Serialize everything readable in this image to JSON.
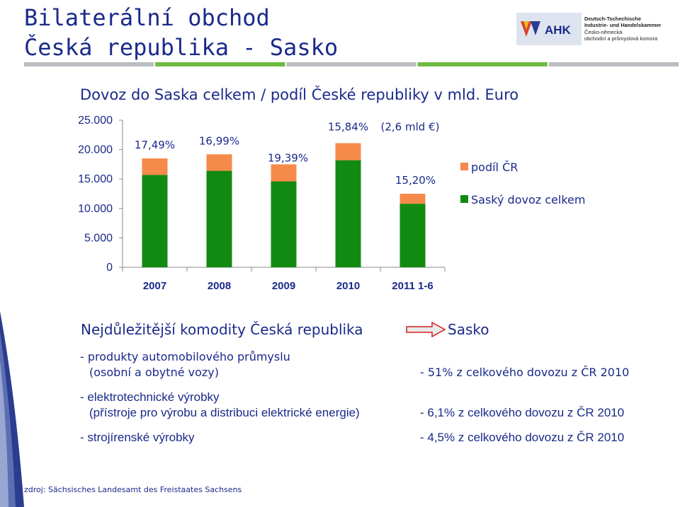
{
  "header": {
    "title_line1": "Bilaterální obchod",
    "title_line2": "Česká republika - Sasko"
  },
  "logo": {
    "abbr": "AHK",
    "line1": "Deutsch-Tschechische",
    "line2": "Industrie- und Handelskammer",
    "line3": "Česko-německá",
    "line4": "obchodní a průmyslová komora"
  },
  "divider_colors": [
    "#b9bcc1",
    "#6dbb3f",
    "#b9bcc1",
    "#6dbb3f",
    "#b9bcc1"
  ],
  "colors": {
    "green": "#128a12",
    "orange": "#f58a4a",
    "text": "#1a2a8a"
  },
  "chart_data": {
    "type": "bar",
    "title": "Dovoz do Saska celkem / podíl České republiky v mld. Euro",
    "categories": [
      "2007",
      "2008",
      "2009",
      "2010",
      "2011 1-6"
    ],
    "series": [
      {
        "name": "Saský dovoz celkem",
        "values": [
          15700,
          16400,
          14600,
          18200,
          10800
        ]
      },
      {
        "name": "podíl ČR",
        "values": [
          2800,
          2800,
          2900,
          2900,
          1700
        ]
      }
    ],
    "bar_labels": [
      "17,49%",
      "16,99%",
      "19,39%",
      "15,84%",
      "15,20%"
    ],
    "annotation": "(2,6 mld €)",
    "yticks": [
      "0",
      "5.000",
      "10.000",
      "15.000",
      "20.000",
      "25.000"
    ],
    "ylim": [
      0,
      25000
    ],
    "legend_position": "right",
    "grid": false
  },
  "commodities": {
    "heading": "Nejdůležitější komodity Česká republika",
    "target": "Sasko",
    "items": [
      {
        "line1": "- produkty automobilového průmyslu",
        "line2": "(osobní a obytné vozy)",
        "share": "- 51% z celkového dovozu z ČR 2010"
      },
      {
        "line1": "- elektrotechnické výrobky",
        "line2": "(přístroje pro výrobu a distribuci elektrické energie)",
        "share": "- 6,1% z celkového dovozu z ČR 2010"
      },
      {
        "line1": "- strojírenské výrobky",
        "share": "- 4,5% z celkového dovozu z ČR 2010"
      }
    ]
  },
  "source": "zdroj: Sächsisches Landesamt des Freistaates Sachsens"
}
